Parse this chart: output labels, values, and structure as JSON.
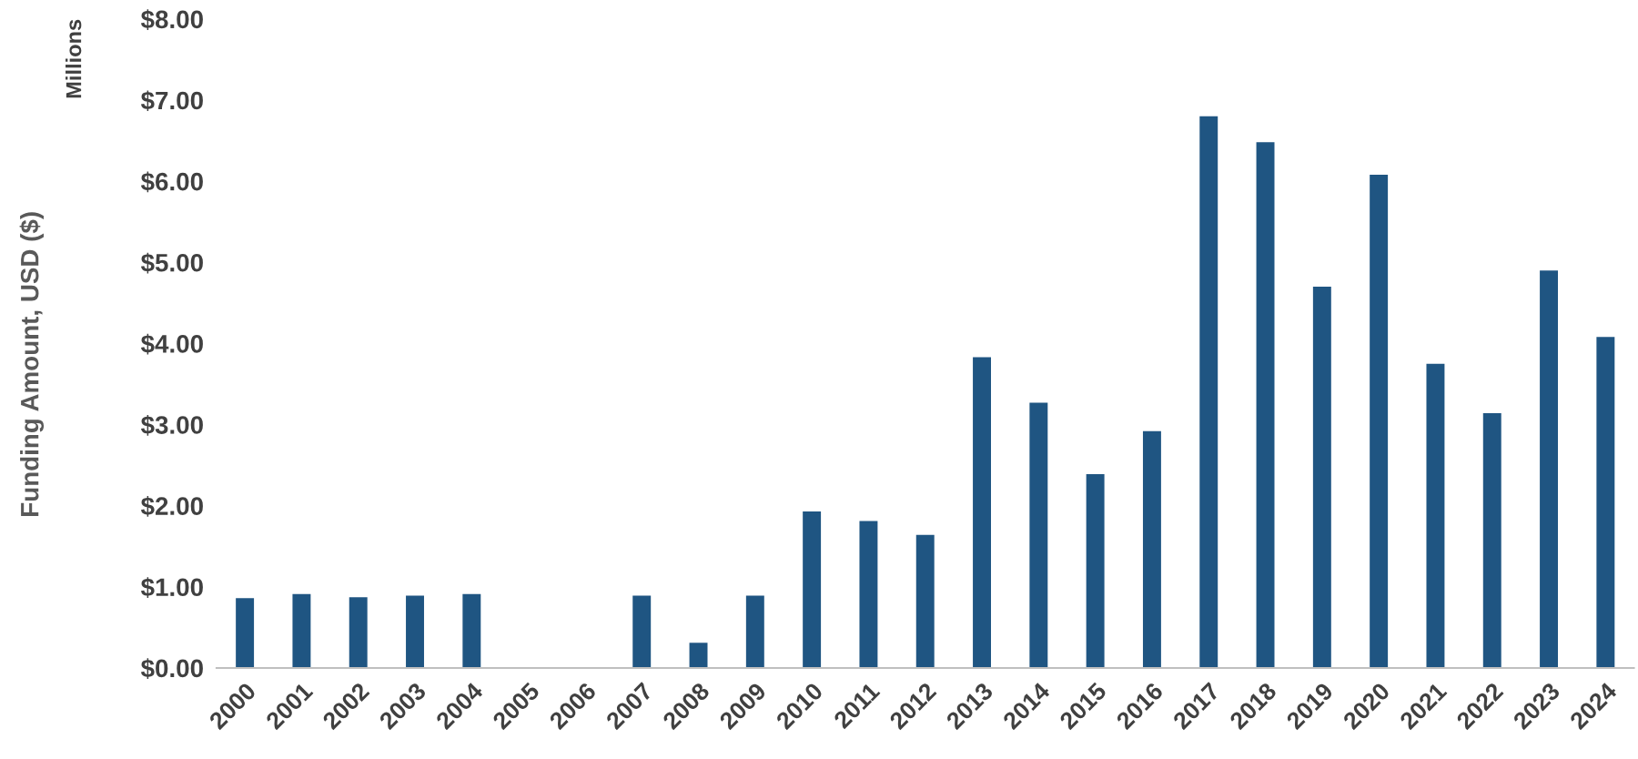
{
  "chart_data": {
    "type": "bar",
    "ylabel": "Funding Amount, USD ($)",
    "annotations": [
      "Millions"
    ],
    "categories": [
      "2000",
      "2001",
      "2002",
      "2003",
      "2004",
      "2005",
      "2006",
      "2007",
      "2008",
      "2009",
      "2010",
      "2011",
      "2012",
      "2013",
      "2014",
      "2015",
      "2016",
      "2017",
      "2018",
      "2019",
      "2020",
      "2021",
      "2022",
      "2023",
      "2024"
    ],
    "values": [
      0.86,
      0.91,
      0.87,
      0.89,
      0.91,
      null,
      null,
      0.89,
      0.31,
      0.89,
      1.93,
      1.81,
      1.64,
      3.83,
      3.27,
      2.39,
      2.92,
      6.8,
      6.48,
      4.7,
      6.08,
      3.75,
      3.14,
      4.9,
      4.08
    ],
    "color": "#1f5582",
    "ylim": [
      0,
      8
    ],
    "yticks": [
      {
        "value": 0,
        "label": "$0.00"
      },
      {
        "value": 1,
        "label": "$1.00"
      },
      {
        "value": 2,
        "label": "$2.00"
      },
      {
        "value": 3,
        "label": "$3.00"
      },
      {
        "value": 4,
        "label": "$4.00"
      },
      {
        "value": 5,
        "label": "$5.00"
      },
      {
        "value": 6,
        "label": "$6.00"
      },
      {
        "value": 7,
        "label": "$7.00"
      },
      {
        "value": 8,
        "label": "$8.00"
      }
    ],
    "grid": false,
    "legend": false
  }
}
